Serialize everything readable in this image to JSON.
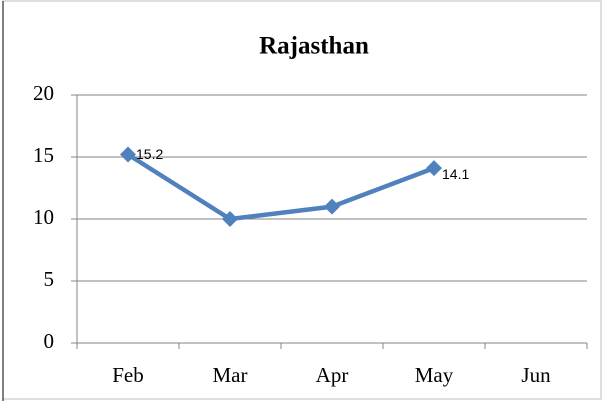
{
  "chart_data": {
    "type": "line",
    "title": "Rajasthan",
    "categories": [
      "Feb",
      "Mar",
      "Apr",
      "May",
      "Jun"
    ],
    "series": [
      {
        "name": "Rajasthan",
        "color": "#4f81bd",
        "values": [
          15.2,
          10,
          11,
          14.1,
          null
        ],
        "value_labels": [
          "15.2",
          null,
          null,
          "14.1",
          null
        ]
      }
    ],
    "ylim": [
      0,
      20
    ],
    "yticks": [
      0,
      5,
      10,
      15,
      20
    ],
    "grid": true
  }
}
